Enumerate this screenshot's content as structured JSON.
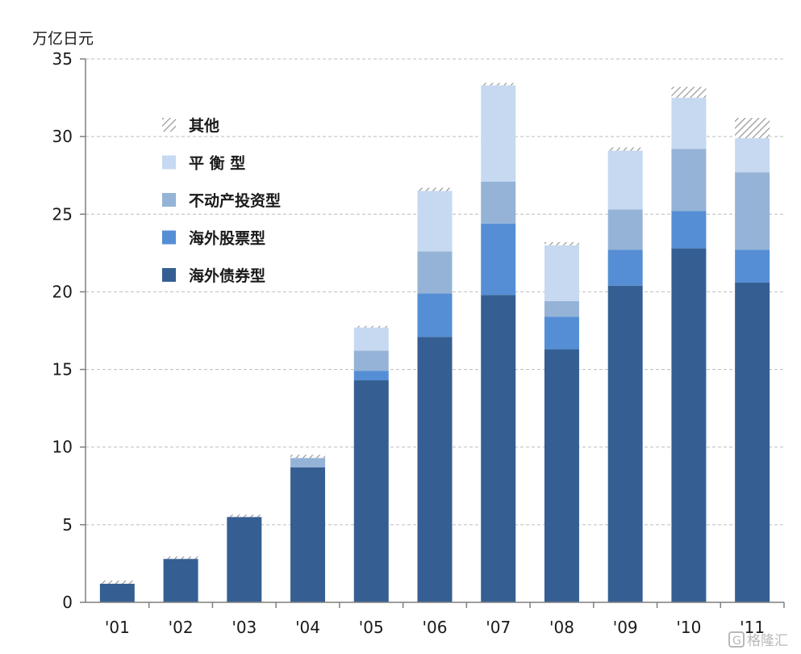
{
  "chart_data": {
    "type": "bar",
    "stacked": true,
    "unit_label": "万亿日元",
    "categories": [
      "'01",
      "'02",
      "'03",
      "'04",
      "'05",
      "'06",
      "'07",
      "'08",
      "'09",
      "'10",
      "'11"
    ],
    "ylim": [
      0,
      35
    ],
    "yticks": [
      0,
      5,
      10,
      15,
      20,
      25,
      30,
      35
    ],
    "grid": "horizontal-dashed",
    "legend_position": "upper-left",
    "series": [
      {
        "name": "海外债券型",
        "color": "#355f93",
        "values": [
          1.2,
          2.8,
          5.5,
          8.7,
          14.3,
          17.1,
          19.8,
          16.3,
          20.4,
          22.8,
          20.6
        ]
      },
      {
        "name": "海外股票型",
        "color": "#558ed5",
        "values": [
          0,
          0,
          0,
          0,
          0.6,
          2.8,
          4.6,
          2.1,
          2.3,
          2.4,
          2.1
        ]
      },
      {
        "name": "不动产投资型",
        "color": "#95b3d7",
        "values": [
          0,
          0,
          0,
          0.6,
          1.3,
          2.7,
          2.7,
          1.0,
          2.6,
          4.0,
          5.0
        ]
      },
      {
        "name": "平 衡 型",
        "color": "#c6d9f1",
        "values": [
          0,
          0,
          0,
          0,
          1.5,
          3.9,
          6.2,
          3.6,
          3.8,
          3.3,
          2.2
        ]
      },
      {
        "name": "其他",
        "color": "hatch",
        "values": [
          0.2,
          0.15,
          0.15,
          0.2,
          0.1,
          0.2,
          0.15,
          0.2,
          0.2,
          0.7,
          1.3
        ]
      }
    ],
    "legend_order": [
      4,
      3,
      2,
      1,
      0
    ]
  },
  "watermark": {
    "text": "格隆汇",
    "icon": "gelonghui-logo-icon"
  }
}
